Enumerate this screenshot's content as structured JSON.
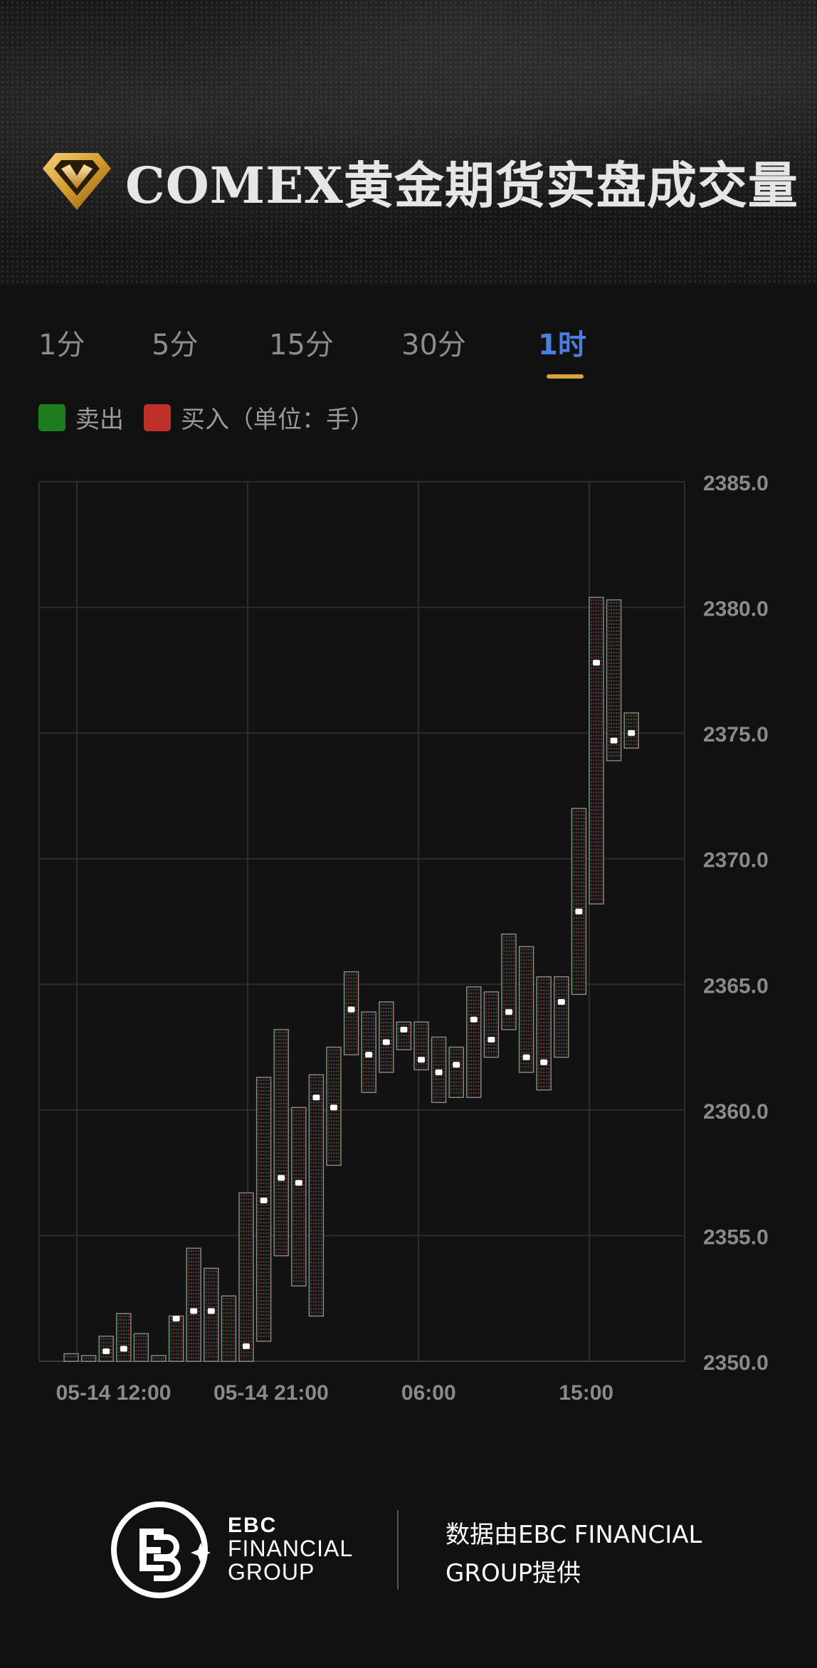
{
  "header": {
    "title": "COMEX黄金期货实盘成交量",
    "logo_icon": "gold-diamond-icon"
  },
  "tabs": [
    {
      "label": "1分",
      "active": false
    },
    {
      "label": "5分",
      "active": false
    },
    {
      "label": "15分",
      "active": false
    },
    {
      "label": "30分",
      "active": false
    },
    {
      "label": "1时",
      "active": true
    }
  ],
  "legend": {
    "sell_label": "卖出",
    "buy_label": "买入（单位：手）",
    "sell_color": "#1e7d1e",
    "buy_color": "#c0302a"
  },
  "chart_data": {
    "type": "candlestick",
    "y_ticks": [
      "2385.0",
      "2380.0",
      "2375.0",
      "2370.0",
      "2365.0",
      "2360.0",
      "2355.0",
      "2350.0"
    ],
    "ylim": [
      2350,
      2385
    ],
    "x_ticks": [
      "05-14 12:00",
      "05-14 21:00",
      "06:00",
      "15:00"
    ],
    "x_tick_index": [
      2.5,
      11.5,
      20.5,
      29.5
    ],
    "grid": true,
    "up_color": "#c0302a",
    "down_color": "#1e7d1e",
    "marker_color": "#ffffff",
    "bars": [
      {
        "low": 2350.0,
        "high": 2350.3,
        "marker": null
      },
      {
        "low": 2350.0,
        "high": 2350.0,
        "marker": null
      },
      {
        "low": 2350.0,
        "high": 2351.0,
        "marker": 2350.4
      },
      {
        "low": 2350.0,
        "high": 2351.9,
        "marker": 2350.5
      },
      {
        "low": 2350.0,
        "high": 2351.1,
        "marker": null
      },
      {
        "low": 2350.0,
        "high": 2350.0,
        "marker": null
      },
      {
        "low": 2350.0,
        "high": 2351.8,
        "marker": 2351.7
      },
      {
        "low": 2350.0,
        "high": 2354.5,
        "marker": 2352.0
      },
      {
        "low": 2350.0,
        "high": 2353.7,
        "marker": 2352.0
      },
      {
        "low": 2350.0,
        "high": 2352.6,
        "marker": null
      },
      {
        "low": 2350.0,
        "high": 2356.7,
        "marker": 2350.6
      },
      {
        "low": 2350.8,
        "high": 2361.3,
        "marker": 2356.4
      },
      {
        "low": 2354.2,
        "high": 2363.2,
        "marker": 2357.3
      },
      {
        "low": 2353.0,
        "high": 2360.1,
        "marker": 2357.1
      },
      {
        "low": 2351.8,
        "high": 2361.4,
        "marker": 2360.5
      },
      {
        "low": 2357.8,
        "high": 2362.5,
        "marker": 2360.1
      },
      {
        "low": 2362.2,
        "high": 2365.5,
        "marker": 2364.0
      },
      {
        "low": 2360.7,
        "high": 2363.9,
        "marker": 2362.2
      },
      {
        "low": 2361.5,
        "high": 2364.3,
        "marker": 2362.7
      },
      {
        "low": 2362.4,
        "high": 2363.5,
        "marker": 2363.2
      },
      {
        "low": 2361.6,
        "high": 2363.5,
        "marker": 2362.0
      },
      {
        "low": 2360.3,
        "high": 2362.9,
        "marker": 2361.5
      },
      {
        "low": 2360.5,
        "high": 2362.5,
        "marker": 2361.8
      },
      {
        "low": 2360.5,
        "high": 2364.9,
        "marker": 2363.6
      },
      {
        "low": 2362.1,
        "high": 2364.7,
        "marker": 2362.8
      },
      {
        "low": 2363.2,
        "high": 2367.0,
        "marker": 2363.9
      },
      {
        "low": 2361.5,
        "high": 2366.5,
        "marker": 2362.1
      },
      {
        "low": 2360.8,
        "high": 2365.3,
        "marker": 2361.9
      },
      {
        "low": 2362.1,
        "high": 2365.3,
        "marker": 2364.3
      },
      {
        "low": 2364.6,
        "high": 2372.0,
        "marker": 2367.9
      },
      {
        "low": 2368.2,
        "high": 2380.4,
        "marker": 2377.8
      },
      {
        "low": 2373.9,
        "high": 2380.3,
        "marker": 2374.7
      },
      {
        "low": 2374.4,
        "high": 2375.8,
        "marker": 2375.0
      }
    ]
  },
  "footer": {
    "logo_icon": "ebc-logo-icon",
    "brand_line1": "EBC",
    "brand_line2": "FINANCIAL",
    "brand_line3": "GROUP",
    "note": "数据由EBC FINANCIAL GROUP提供"
  }
}
